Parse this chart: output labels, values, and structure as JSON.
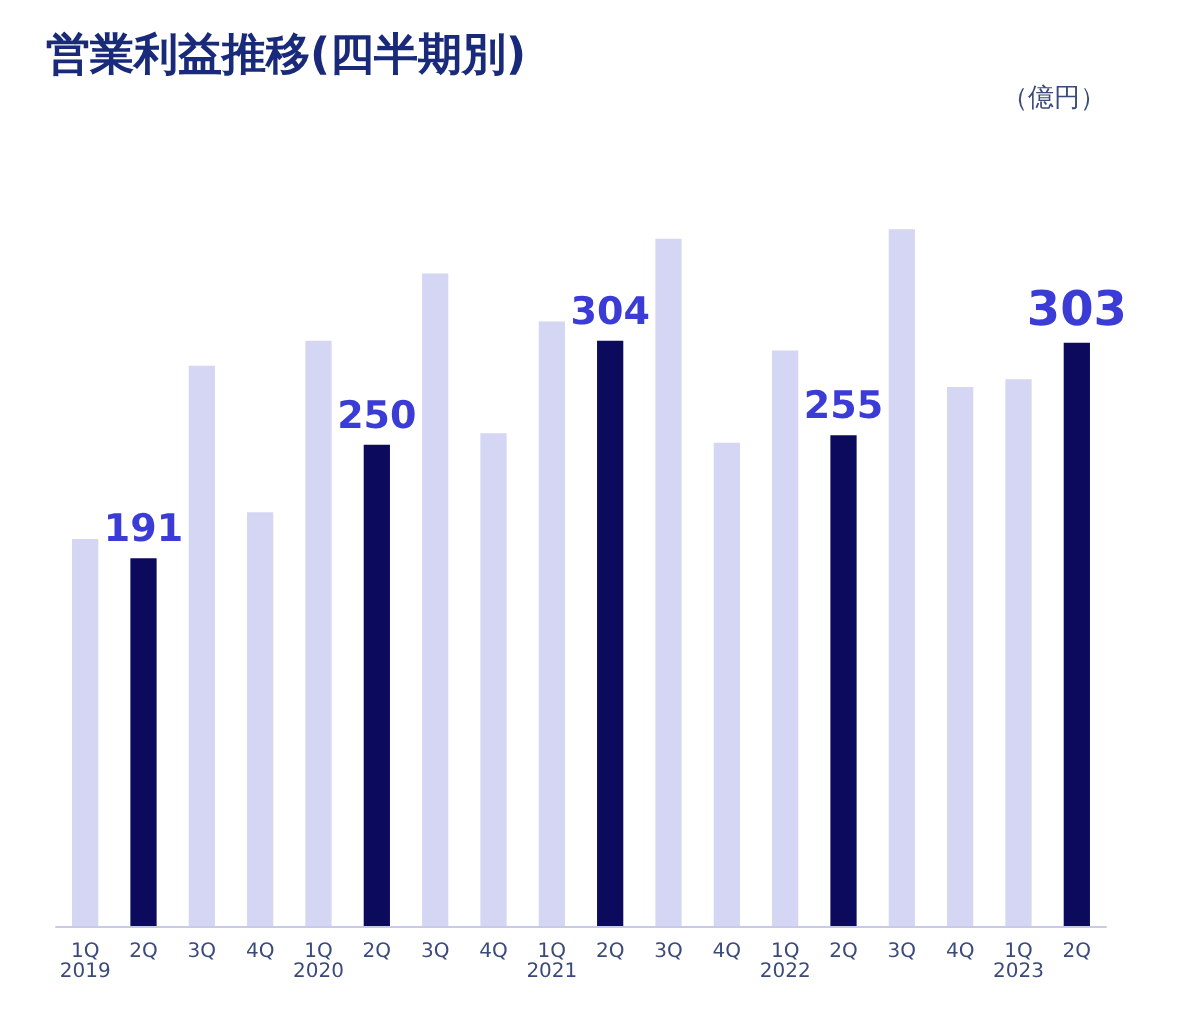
{
  "chart_data": {
    "type": "bar",
    "title": "営業利益推移(四半期別)",
    "ylabel": "（億円）",
    "categories": [
      "1Q\n2019",
      "2Q",
      "3Q",
      "4Q",
      "1Q\n2020",
      "2Q",
      "3Q",
      "4Q",
      "1Q\n2021",
      "2Q",
      "3Q",
      "4Q",
      "1Q\n2022",
      "2Q",
      "3Q",
      "4Q",
      "1Q\n2023",
      "2Q"
    ],
    "values": [
      201,
      191,
      291,
      215,
      304,
      250,
      339,
      256,
      314,
      304,
      357,
      251,
      299,
      255,
      362,
      280,
      284,
      303
    ],
    "colors": [
      "#d4d6f3",
      "#0b0a5c",
      "#d4d6f3",
      "#d4d6f3",
      "#d4d6f3",
      "#0b0a5c",
      "#d4d6f3",
      "#d4d6f3",
      "#d4d6f3",
      "#0b0a5c",
      "#d4d6f3",
      "#d4d6f3",
      "#d4d6f3",
      "#0b0a5c",
      "#d4d6f3",
      "#d4d6f3",
      "#d4d6f3",
      "#0b0a5c"
    ],
    "value_labels": [
      null,
      "191",
      null,
      null,
      null,
      "250",
      null,
      null,
      null,
      "304",
      null,
      null,
      null,
      "255",
      null,
      null,
      null,
      "303"
    ],
    "grid": false
  }
}
